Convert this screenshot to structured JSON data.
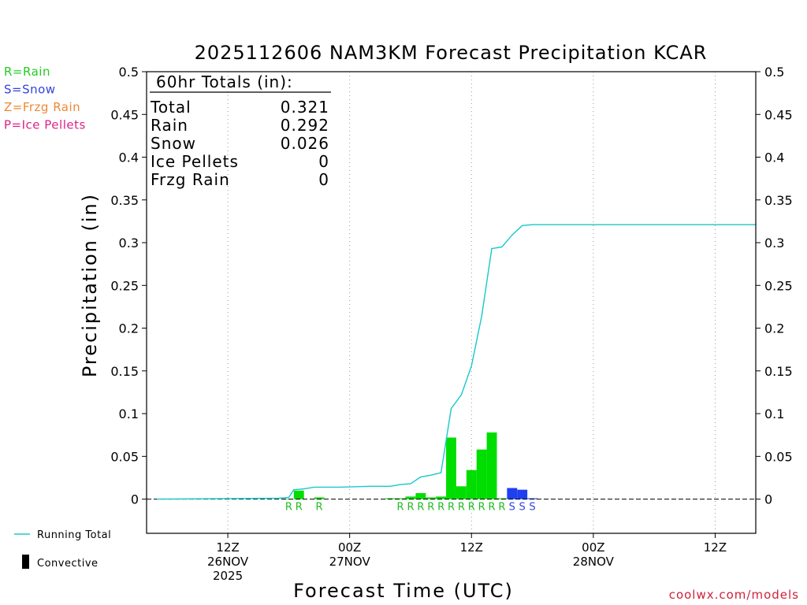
{
  "chart_data": {
    "type": "bar",
    "title": "2025112606 NAM3KM Forecast Precipitation KCAR",
    "xlabel": "Forecast Time (UTC)",
    "ylabel": "Precipitation (in)",
    "ylim": [
      -0.04,
      0.5
    ],
    "yticks": [
      "0",
      "0.05",
      "0.1",
      "0.15",
      "0.2",
      "0.25",
      "0.3",
      "0.35",
      "0.4",
      "0.45",
      "0.5"
    ],
    "ytick_values": [
      0,
      0.05,
      0.1,
      0.15,
      0.2,
      0.25,
      0.3,
      0.35,
      0.4,
      0.45,
      0.5
    ],
    "xlim_hours": [
      -2,
      58
    ],
    "xticks": [
      {
        "hour": 6,
        "lines": [
          "12Z",
          "26NOV",
          "2025"
        ]
      },
      {
        "hour": 18,
        "lines": [
          "00Z",
          "27NOV"
        ]
      },
      {
        "hour": 30,
        "lines": [
          "12Z"
        ]
      },
      {
        "hour": 42,
        "lines": [
          "00Z",
          "28NOV"
        ]
      },
      {
        "hour": 54,
        "lines": [
          "12Z"
        ]
      }
    ],
    "totals": {
      "header": "60hr Totals (in):",
      "rows": [
        {
          "label": "Total",
          "value": "0.321"
        },
        {
          "label": "Rain",
          "value": "0.292"
        },
        {
          "label": "Snow",
          "value": "0.026"
        },
        {
          "label": "Ice Pellets",
          "value": "0"
        },
        {
          "label": "Frzg Rain",
          "value": "0"
        }
      ]
    },
    "type_legend": [
      {
        "text": "R=Rain",
        "color": "#22cc22"
      },
      {
        "text": "S=Snow",
        "color": "#3344dd"
      },
      {
        "text": "Z=Frzg Rain",
        "color": "#ee8833"
      },
      {
        "text": "P=Ice Pellets",
        "color": "#dd2288"
      }
    ],
    "series_legend": {
      "running_total": "Running Total",
      "convective": "Convective"
    },
    "bar_colors": {
      "R": "#00dd00",
      "S": "#1f3ff0"
    },
    "code_colors": {
      "R": "#22bb22",
      "S": "#3344dd"
    },
    "line_color": "#18c8c8",
    "bars": [
      {
        "hour": 12,
        "value": 0.0005,
        "type": "R",
        "code": "R"
      },
      {
        "hour": 13,
        "value": 0.01,
        "type": "R",
        "code": "R"
      },
      {
        "hour": 15,
        "value": 0.002,
        "type": "R",
        "code": "R"
      },
      {
        "hour": 22,
        "value": 0.001,
        "type": "R",
        "code": ""
      },
      {
        "hour": 23,
        "value": 0.001,
        "type": "R",
        "code": "R"
      },
      {
        "hour": 24,
        "value": 0.003,
        "type": "R",
        "code": "R"
      },
      {
        "hour": 25,
        "value": 0.007,
        "type": "R",
        "code": "R"
      },
      {
        "hour": 26,
        "value": 0.002,
        "type": "R",
        "code": "R"
      },
      {
        "hour": 27,
        "value": 0.003,
        "type": "R",
        "code": "R"
      },
      {
        "hour": 28,
        "value": 0.072,
        "type": "R",
        "code": "R"
      },
      {
        "hour": 29,
        "value": 0.015,
        "type": "R",
        "code": "R"
      },
      {
        "hour": 30,
        "value": 0.034,
        "type": "R",
        "code": "R"
      },
      {
        "hour": 31,
        "value": 0.058,
        "type": "R",
        "code": "R"
      },
      {
        "hour": 32,
        "value": 0.078,
        "type": "R",
        "code": "R"
      },
      {
        "hour": 33,
        "value": 0.001,
        "type": "R",
        "code": "R"
      },
      {
        "hour": 34,
        "value": 0.013,
        "type": "S",
        "code": "S"
      },
      {
        "hour": 35,
        "value": 0.011,
        "type": "S",
        "code": "S"
      },
      {
        "hour": 36,
        "value": 0.001,
        "type": "S",
        "code": "S"
      }
    ],
    "running_total": [
      {
        "hour": -1,
        "value": 0.0
      },
      {
        "hour": 11,
        "value": 0.001
      },
      {
        "hour": 12,
        "value": 0.002
      },
      {
        "hour": 12.5,
        "value": 0.011
      },
      {
        "hour": 13.5,
        "value": 0.012
      },
      {
        "hour": 14.5,
        "value": 0.014
      },
      {
        "hour": 17,
        "value": 0.014
      },
      {
        "hour": 20,
        "value": 0.015
      },
      {
        "hour": 22,
        "value": 0.015
      },
      {
        "hour": 23,
        "value": 0.017
      },
      {
        "hour": 24,
        "value": 0.018
      },
      {
        "hour": 25,
        "value": 0.026
      },
      {
        "hour": 26,
        "value": 0.028
      },
      {
        "hour": 27,
        "value": 0.031
      },
      {
        "hour": 28,
        "value": 0.106
      },
      {
        "hour": 29,
        "value": 0.122
      },
      {
        "hour": 30,
        "value": 0.156
      },
      {
        "hour": 31,
        "value": 0.214
      },
      {
        "hour": 32,
        "value": 0.293
      },
      {
        "hour": 33,
        "value": 0.295
      },
      {
        "hour": 34,
        "value": 0.309
      },
      {
        "hour": 35,
        "value": 0.32
      },
      {
        "hour": 36,
        "value": 0.321
      },
      {
        "hour": 58,
        "value": 0.321
      }
    ]
  },
  "credit": "coolwx.com/models"
}
